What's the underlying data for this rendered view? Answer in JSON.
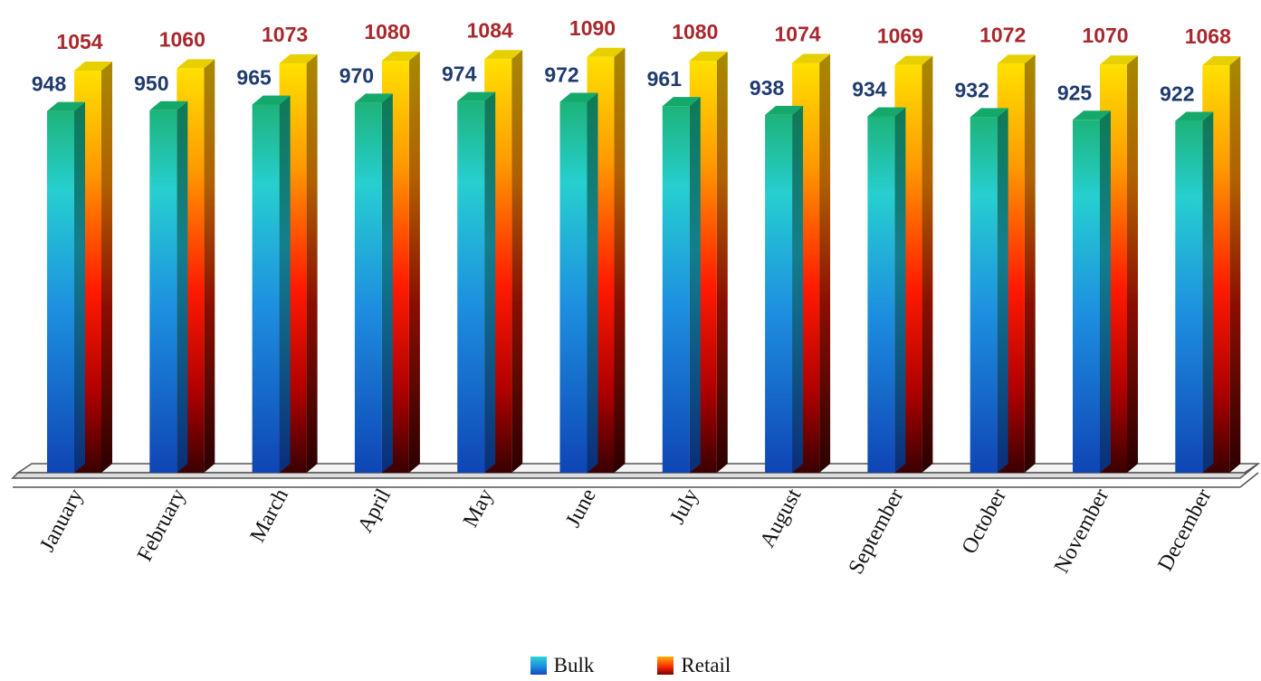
{
  "chart_data": {
    "type": "bar",
    "style": "3d-clustered-column",
    "categories": [
      "January",
      "February",
      "March",
      "April",
      "May",
      "June",
      "July",
      "August",
      "September",
      "October",
      "November",
      "December"
    ],
    "series": [
      {
        "name": "Bulk",
        "values": [
          948,
          950,
          965,
          970,
          974,
          972,
          961,
          938,
          934,
          932,
          925,
          922
        ],
        "label_color": "#1f3b70"
      },
      {
        "name": "Retail",
        "values": [
          1054,
          1060,
          1073,
          1080,
          1084,
          1090,
          1080,
          1074,
          1069,
          1072,
          1070,
          1068
        ],
        "label_color": "#a8282e"
      }
    ],
    "title": "",
    "xlabel": "",
    "ylabel": "",
    "y_axis_visible": false,
    "ylim": [
      0,
      1090
    ],
    "grid": false,
    "legend_position": "bottom-center",
    "data_labels": true
  },
  "legend": {
    "bulk_label": "Bulk",
    "retail_label": "Retail"
  }
}
